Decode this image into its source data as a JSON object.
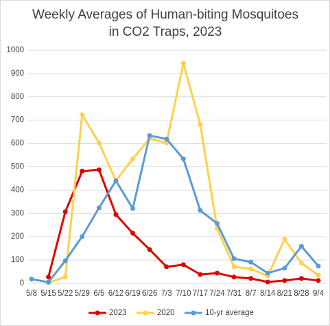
{
  "chart_data": {
    "type": "line",
    "title": "Weekly Averages of Human-biting Mosquitoes in CO2 Traps, 2023",
    "categories": [
      "5/8",
      "5/15",
      "5/22",
      "5/29",
      "6/5",
      "6/12",
      "6/19",
      "6/26",
      "7/3",
      "7/10",
      "7/17",
      "7/24",
      "7/31",
      "8/7",
      "8/14",
      "8/21",
      "8/28",
      "9/4"
    ],
    "series": [
      {
        "name": "2023",
        "color": "#e00000",
        "values": [
          null,
          27,
          307,
          481,
          487,
          295,
          215,
          145,
          71,
          80,
          38,
          44,
          27,
          21,
          6,
          12,
          21,
          12
        ]
      },
      {
        "name": "2020",
        "color": "#ffd04c",
        "values": [
          null,
          3,
          27,
          723,
          602,
          440,
          534,
          622,
          602,
          944,
          681,
          236,
          71,
          62,
          32,
          189,
          86,
          35
        ]
      },
      {
        "name": "10-yr average",
        "color": "#5b9bd5",
        "values": [
          18,
          5,
          97,
          201,
          324,
          440,
          321,
          634,
          619,
          534,
          313,
          257,
          106,
          91,
          44,
          65,
          159,
          74
        ]
      }
    ],
    "ylim": [
      0,
      1000
    ],
    "yticks": [
      0,
      100,
      200,
      300,
      400,
      500,
      600,
      700,
      800,
      900,
      1000
    ],
    "grid": true,
    "legend": "bottom"
  }
}
